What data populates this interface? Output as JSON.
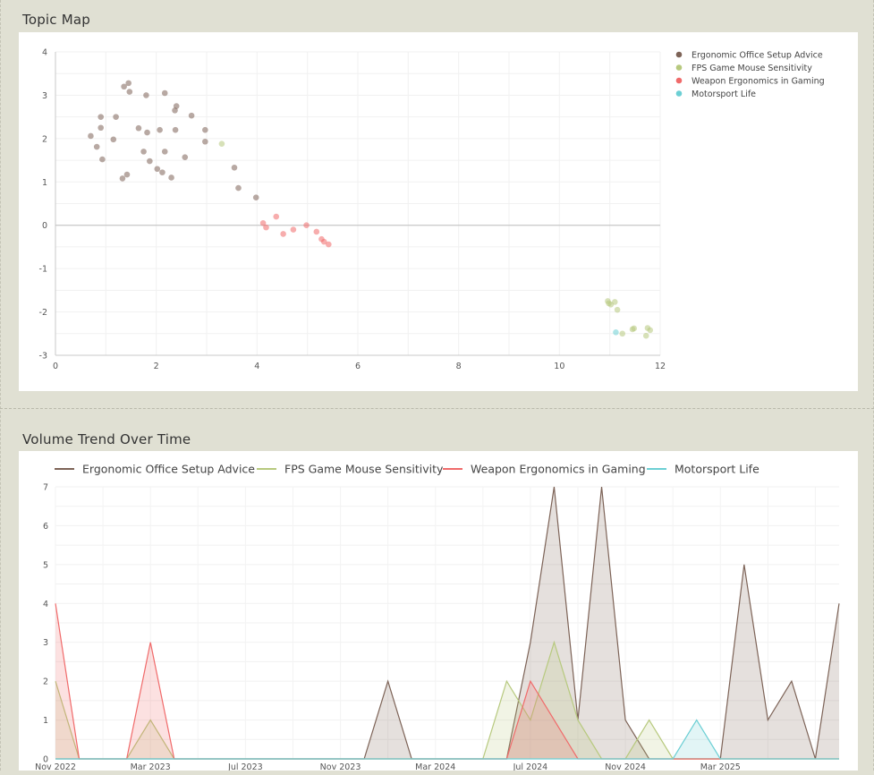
{
  "sections": {
    "topic_map_title": "Topic Map",
    "volume_trend_title": "Volume Trend Over Time"
  },
  "series_colors": {
    "Ergonomic Office Setup Advice": "#7d6357",
    "FPS Game Mouse Sensitivity": "#b7c97e",
    "Weapon Ergonomics in Gaming": "#f06a6a",
    "Motorsport Life": "#6ccfd4"
  },
  "chart_data": [
    {
      "type": "scatter",
      "title": "Topic Map",
      "xlim": [
        0,
        12
      ],
      "ylim": [
        -3,
        4
      ],
      "x_ticks": [
        0,
        2,
        4,
        6,
        8,
        10,
        12
      ],
      "y_ticks": [
        4,
        3,
        2,
        1,
        0,
        -1,
        -2,
        -3
      ],
      "legend_position": "right",
      "grid": true,
      "series": [
        {
          "name": "Ergonomic Office Setup Advice",
          "points": [
            [
              0.7,
              2.06
            ],
            [
              0.82,
              1.81
            ],
            [
              0.9,
              2.5
            ],
            [
              0.9,
              2.25
            ],
            [
              0.93,
              1.52
            ],
            [
              1.15,
              1.98
            ],
            [
              1.2,
              2.5
            ],
            [
              1.33,
              1.08
            ],
            [
              1.36,
              3.2
            ],
            [
              1.42,
              1.17
            ],
            [
              1.45,
              3.28
            ],
            [
              1.47,
              3.08
            ],
            [
              1.65,
              2.24
            ],
            [
              1.75,
              1.7
            ],
            [
              1.8,
              3.0
            ],
            [
              1.82,
              2.14
            ],
            [
              1.87,
              1.48
            ],
            [
              2.02,
              1.3
            ],
            [
              2.07,
              2.2
            ],
            [
              2.12,
              1.22
            ],
            [
              2.17,
              3.05
            ],
            [
              2.17,
              1.7
            ],
            [
              2.3,
              1.1
            ],
            [
              2.37,
              2.65
            ],
            [
              2.38,
              2.2
            ],
            [
              2.4,
              2.75
            ],
            [
              2.57,
              1.57
            ],
            [
              2.7,
              2.53
            ],
            [
              2.97,
              2.2
            ],
            [
              2.97,
              1.93
            ],
            [
              3.55,
              1.33
            ],
            [
              3.63,
              0.86
            ],
            [
              3.98,
              0.64
            ]
          ]
        },
        {
          "name": "FPS Game Mouse Sensitivity",
          "points": [
            [
              3.3,
              1.88
            ],
            [
              10.96,
              -1.75
            ],
            [
              10.98,
              -1.8
            ],
            [
              11.02,
              -1.83
            ],
            [
              11.1,
              -1.77
            ],
            [
              11.15,
              -1.95
            ],
            [
              11.25,
              -2.5
            ],
            [
              11.45,
              -2.4
            ],
            [
              11.48,
              -2.38
            ],
            [
              11.72,
              -2.55
            ],
            [
              11.75,
              -2.37
            ],
            [
              11.8,
              -2.42
            ]
          ]
        },
        {
          "name": "Weapon Ergonomics in Gaming",
          "points": [
            [
              4.12,
              0.05
            ],
            [
              4.18,
              -0.05
            ],
            [
              4.38,
              0.2
            ],
            [
              4.52,
              -0.2
            ],
            [
              4.72,
              -0.1
            ],
            [
              4.98,
              0.0
            ],
            [
              5.18,
              -0.15
            ],
            [
              5.28,
              -0.32
            ],
            [
              5.33,
              -0.38
            ],
            [
              5.42,
              -0.44
            ]
          ]
        },
        {
          "name": "Motorsport Life",
          "points": [
            [
              11.12,
              -2.47
            ]
          ]
        }
      ]
    },
    {
      "type": "area",
      "title": "Volume Trend Over Time",
      "x_start": "Nov 2022",
      "x_step": "1 month",
      "x_tick_labels": [
        "Nov 2022",
        "Mar 2023",
        "Jul 2023",
        "Nov 2023",
        "Mar 2024",
        "Jul 2024",
        "Nov 2024",
        "Mar 2025"
      ],
      "ylim": [
        0,
        7
      ],
      "y_ticks": [
        0,
        1,
        2,
        3,
        4,
        5,
        6,
        7
      ],
      "legend_position": "top",
      "grid": true,
      "series": [
        {
          "name": "Ergonomic Office Setup Advice",
          "values": [
            0,
            0,
            0,
            0,
            0,
            0,
            0,
            0,
            0,
            0,
            0,
            0,
            0,
            0,
            2,
            0,
            0,
            0,
            0,
            0,
            3,
            7,
            1,
            7,
            1,
            0,
            0,
            0,
            0,
            5,
            1,
            2,
            0,
            4
          ]
        },
        {
          "name": "FPS Game Mouse Sensitivity",
          "values": [
            2,
            0,
            0,
            0,
            1,
            0,
            0,
            0,
            0,
            0,
            0,
            0,
            0,
            0,
            0,
            0,
            0,
            0,
            0,
            2,
            1,
            3,
            1,
            0,
            0,
            1,
            0,
            0,
            0,
            0,
            0,
            0,
            0,
            0
          ]
        },
        {
          "name": "Weapon Ergonomics in Gaming",
          "values": [
            4,
            0,
            0,
            0,
            3,
            0,
            0,
            0,
            0,
            0,
            0,
            0,
            0,
            0,
            0,
            0,
            0,
            0,
            0,
            0,
            2,
            1,
            0,
            0,
            0,
            0,
            0,
            0,
            0,
            0,
            0,
            0,
            0,
            0
          ]
        },
        {
          "name": "Motorsport Life",
          "values": [
            0,
            0,
            0,
            0,
            0,
            0,
            0,
            0,
            0,
            0,
            0,
            0,
            0,
            0,
            0,
            0,
            0,
            0,
            0,
            0,
            0,
            0,
            0,
            0,
            0,
            0,
            0,
            1,
            0,
            0,
            0,
            0,
            0,
            0
          ]
        }
      ]
    }
  ]
}
